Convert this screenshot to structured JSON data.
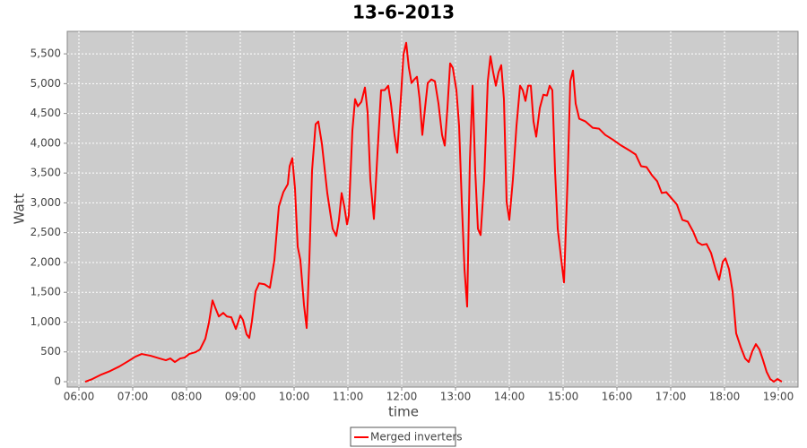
{
  "chart_data": {
    "type": "line",
    "title": "13-6-2013",
    "x_label": "time",
    "y_label": "Watt",
    "x": [
      "06:07",
      "06:15",
      "06:25",
      "06:35",
      "06:45",
      "06:55",
      "07:03",
      "07:10",
      "07:20",
      "07:30",
      "07:37",
      "07:42",
      "07:47",
      "07:53",
      "07:58",
      "08:03",
      "08:10",
      "08:15",
      "08:21",
      "08:25",
      "08:29",
      "08:32",
      "08:36",
      "08:41",
      "08:45",
      "08:50",
      "08:55",
      "09:00",
      "09:03",
      "09:07",
      "09:10",
      "09:13",
      "09:17",
      "09:21",
      "09:27",
      "09:33",
      "09:38",
      "09:43",
      "09:48",
      "09:53",
      "09:55",
      "09:58",
      "10:01",
      "10:04",
      "10:07",
      "10:11",
      "10:14",
      "10:17",
      "10:20",
      "10:24",
      "10:27",
      "10:31",
      "10:37",
      "10:43",
      "10:47",
      "10:50",
      "10:53",
      "10:56",
      "10:59",
      "11:01",
      "11:05",
      "11:08",
      "11:11",
      "11:15",
      "11:19",
      "11:22",
      "11:25",
      "11:29",
      "11:33",
      "11:37",
      "11:41",
      "11:45",
      "11:48",
      "11:52",
      "11:55",
      "11:59",
      "12:02",
      "12:05",
      "12:08",
      "12:11",
      "12:14",
      "12:17",
      "12:20",
      "12:23",
      "12:26",
      "12:29",
      "12:33",
      "12:37",
      "12:41",
      "12:45",
      "12:48",
      "12:51",
      "12:54",
      "12:57",
      "13:01",
      "13:04",
      "13:07",
      "13:10",
      "13:13",
      "13:16",
      "13:19",
      "13:22",
      "13:25",
      "13:28",
      "13:32",
      "13:36",
      "13:39",
      "13:42",
      "13:45",
      "13:48",
      "13:51",
      "13:54",
      "13:57",
      "14:00",
      "14:04",
      "14:08",
      "14:12",
      "14:15",
      "14:18",
      "14:21",
      "14:24",
      "14:27",
      "14:30",
      "14:34",
      "14:38",
      "14:42",
      "14:45",
      "14:48",
      "14:51",
      "14:54",
      "14:58",
      "15:01",
      "15:05",
      "15:08",
      "15:11",
      "15:14",
      "15:18",
      "15:25",
      "15:33",
      "15:40",
      "15:47",
      "15:55",
      "16:05",
      "16:15",
      "16:21",
      "16:27",
      "16:33",
      "16:39",
      "16:45",
      "16:50",
      "16:55",
      "17:01",
      "17:07",
      "17:13",
      "17:19",
      "17:25",
      "17:30",
      "17:35",
      "17:40",
      "17:45",
      "17:50",
      "17:54",
      "17:58",
      "18:01",
      "18:05",
      "18:09",
      "18:13",
      "18:18",
      "18:23",
      "18:27",
      "18:31",
      "18:35",
      "18:39",
      "18:43",
      "18:47",
      "18:51",
      "18:55",
      "18:59",
      "19:04"
    ],
    "series": [
      {
        "name": "Merged inverters",
        "color": "#ff0000",
        "values": [
          0,
          45,
          120,
          180,
          255,
          345,
          420,
          465,
          435,
          390,
          360,
          390,
          330,
          390,
          405,
          465,
          495,
          540,
          720,
          990,
          1365,
          1245,
          1095,
          1155,
          1095,
          1080,
          885,
          1110,
          1035,
          795,
          735,
          1020,
          1515,
          1650,
          1635,
          1575,
          2040,
          2940,
          3180,
          3315,
          3615,
          3750,
          3240,
          2265,
          2040,
          1290,
          900,
          2040,
          3540,
          4320,
          4365,
          3990,
          3165,
          2565,
          2445,
          2715,
          3165,
          2940,
          2640,
          2790,
          4215,
          4740,
          4620,
          4695,
          4935,
          4515,
          3390,
          2730,
          3840,
          4890,
          4890,
          4965,
          4665,
          4140,
          3840,
          4740,
          5490,
          5685,
          5265,
          5010,
          5070,
          5115,
          4740,
          4140,
          4590,
          5010,
          5070,
          5040,
          4665,
          4140,
          3960,
          4590,
          5340,
          5265,
          4890,
          4290,
          3015,
          1890,
          1260,
          3690,
          4965,
          3540,
          2565,
          2460,
          3390,
          5040,
          5460,
          5190,
          4965,
          5190,
          5310,
          4740,
          3015,
          2715,
          3390,
          4290,
          4965,
          4890,
          4710,
          4965,
          4965,
          4365,
          4110,
          4590,
          4815,
          4800,
          4965,
          4890,
          3540,
          2565,
          2040,
          1665,
          3390,
          5040,
          5220,
          4665,
          4410,
          4365,
          4260,
          4245,
          4140,
          4065,
          3960,
          3870,
          3810,
          3615,
          3600,
          3465,
          3360,
          3165,
          3180,
          3075,
          2970,
          2715,
          2685,
          2520,
          2340,
          2295,
          2310,
          2160,
          1890,
          1710,
          2010,
          2070,
          1890,
          1515,
          810,
          585,
          390,
          330,
          510,
          630,
          540,
          360,
          165,
          45,
          0,
          45,
          0
        ]
      }
    ],
    "xlim": [
      "05:47",
      "19:22"
    ],
    "xticks": [
      "06:00",
      "07:00",
      "08:00",
      "09:00",
      "10:00",
      "11:00",
      "12:00",
      "13:00",
      "14:00",
      "15:00",
      "16:00",
      "17:00",
      "18:00",
      "19:00"
    ],
    "ylim": [
      -90,
      5877
    ],
    "yticks": [
      0,
      500,
      {
        "value": 1000,
        "label": "1,000"
      },
      {
        "value": 1500,
        "label": "1,500"
      },
      {
        "value": 2000,
        "label": "2,000"
      },
      {
        "value": 2500,
        "label": "2,500"
      },
      {
        "value": 3000,
        "label": "3,000"
      },
      {
        "value": 3500,
        "label": "3,500"
      },
      {
        "value": 4000,
        "label": "4,000"
      },
      {
        "value": 4500,
        "label": "4,500"
      },
      {
        "value": 5000,
        "label": "5,000"
      },
      {
        "value": 5500,
        "label": "5,500"
      }
    ],
    "grid": true,
    "legend": "bottom"
  }
}
